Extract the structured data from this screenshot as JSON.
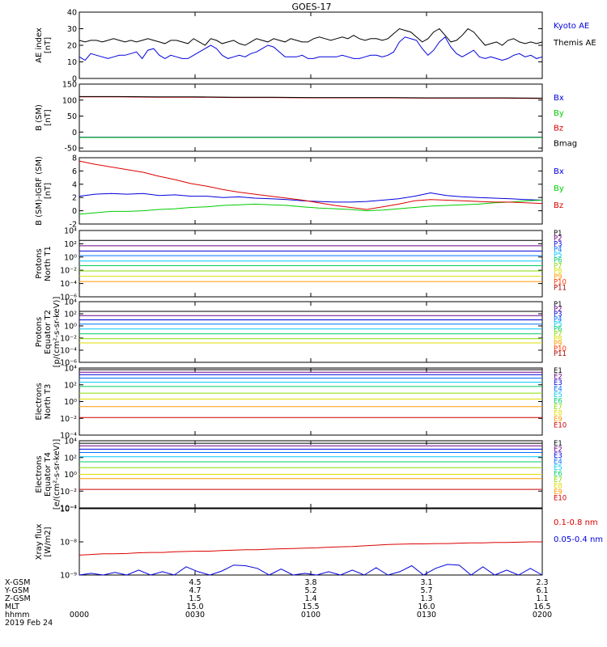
{
  "title": "GOES-17",
  "chart_data": [
    {
      "type": "line",
      "ylabel": [
        "AE index",
        "[nT]"
      ],
      "ylim": [
        0,
        40
      ],
      "yticks": [
        {
          "v": 0,
          "t": "0"
        },
        {
          "v": 10,
          "t": "10"
        },
        {
          "v": 20,
          "t": "20"
        },
        {
          "v": 30,
          "t": "30"
        },
        {
          "v": 40,
          "t": "40"
        }
      ],
      "series": [
        {
          "name": "Kyoto AE",
          "color": "#0000dd",
          "values": [
            13,
            11,
            15,
            14,
            13,
            12,
            13,
            14,
            14,
            15,
            16,
            12,
            17,
            18,
            14,
            12,
            14,
            13,
            12,
            12,
            14,
            16,
            18,
            20,
            18,
            14,
            12,
            13,
            14,
            13,
            15,
            16,
            18,
            20,
            19,
            16,
            13,
            13,
            13,
            14,
            12,
            12,
            13,
            13,
            13,
            13,
            14,
            13,
            12,
            12,
            13,
            14,
            14,
            13,
            14,
            16,
            22,
            25,
            24,
            23,
            18,
            14,
            17,
            22,
            25,
            19,
            15,
            13,
            15,
            17,
            13,
            12,
            13,
            12,
            11,
            12,
            14,
            15,
            13,
            14,
            12,
            13
          ]
        },
        {
          "name": "Themis AE",
          "color": "#000000",
          "values": [
            23,
            22,
            23,
            23,
            22,
            23,
            24,
            23,
            22,
            23,
            22,
            23,
            24,
            23,
            22,
            21,
            23,
            23,
            22,
            21,
            24,
            22,
            20,
            24,
            23,
            21,
            22,
            23,
            21,
            20,
            22,
            24,
            23,
            22,
            24,
            23,
            22,
            24,
            23,
            22,
            22,
            24,
            25,
            24,
            23,
            24,
            25,
            24,
            26,
            24,
            23,
            24,
            24,
            23,
            24,
            27,
            30,
            29,
            28,
            25,
            22,
            24,
            28,
            30,
            26,
            22,
            23,
            26,
            30,
            28,
            24,
            20,
            21,
            22,
            20,
            23,
            24,
            22,
            21,
            22,
            21,
            22
          ]
        }
      ]
    },
    {
      "type": "line",
      "ylabel": [
        "B (SM)",
        "[nT]"
      ],
      "ylim": [
        -60,
        150
      ],
      "yticks": [
        {
          "v": -50,
          "t": "-50"
        },
        {
          "v": 0,
          "t": "0"
        },
        {
          "v": 50,
          "t": "50"
        },
        {
          "v": 100,
          "t": "100"
        },
        {
          "v": 150,
          "t": "150"
        }
      ],
      "series": [
        {
          "name": "Bx",
          "color": "#0000dd",
          "values": [
            -16,
            -16,
            -16,
            -16,
            -16,
            -16,
            -16,
            -16,
            -16,
            -16,
            -16,
            -16,
            -16
          ]
        },
        {
          "name": "By",
          "color": "#00cc00",
          "values": [
            -17,
            -17,
            -17,
            -17,
            -17,
            -17,
            -17,
            -17,
            -17,
            -17,
            -17,
            -17,
            -17
          ]
        },
        {
          "name": "Bz",
          "color": "#dd0000",
          "values": [
            110,
            110,
            109,
            109,
            108,
            108,
            107,
            107,
            107,
            106,
            106,
            106,
            105
          ]
        },
        {
          "name": "Bmag",
          "color": "#000000",
          "values": [
            111,
            111,
            110,
            110,
            109,
            109,
            108,
            108,
            108,
            107,
            107,
            107,
            106
          ]
        }
      ]
    },
    {
      "type": "line",
      "ylabel": [
        "B (SM)-IGRF (SM)",
        "[nT]"
      ],
      "ylim": [
        -2,
        8
      ],
      "yticks": [
        {
          "v": -2,
          "t": "-2"
        },
        {
          "v": 0,
          "t": "0"
        },
        {
          "v": 2,
          "t": "2"
        },
        {
          "v": 4,
          "t": "4"
        },
        {
          "v": 6,
          "t": "6"
        },
        {
          "v": 8,
          "t": "8"
        }
      ],
      "series": [
        {
          "name": "Bx",
          "color": "#0000dd",
          "values": [
            2.2,
            2.5,
            2.6,
            2.5,
            2.6,
            2.3,
            2.4,
            2.2,
            2.2,
            2.0,
            2.1,
            1.9,
            1.8,
            1.7,
            1.5,
            1.4,
            1.3,
            1.3,
            1.4,
            1.6,
            1.8,
            2.2,
            2.7,
            2.3,
            2.1,
            2.0,
            1.9,
            1.8,
            1.7,
            1.6
          ]
        },
        {
          "name": "By",
          "color": "#00cc00",
          "values": [
            -0.5,
            -0.3,
            -0.1,
            -0.1,
            0.0,
            0.2,
            0.3,
            0.5,
            0.6,
            0.8,
            0.9,
            1.0,
            0.9,
            0.8,
            0.6,
            0.4,
            0.3,
            0.2,
            0.0,
            0.1,
            0.3,
            0.5,
            0.7,
            0.8,
            0.9,
            1.0,
            1.2,
            1.3,
            1.5,
            1.6
          ]
        },
        {
          "name": "Bz",
          "color": "#dd0000",
          "values": [
            7.5,
            7.0,
            6.6,
            6.2,
            5.8,
            5.2,
            4.7,
            4.1,
            3.7,
            3.2,
            2.8,
            2.5,
            2.2,
            1.9,
            1.6,
            1.2,
            0.8,
            0.5,
            0.2,
            0.6,
            1.0,
            1.5,
            1.7,
            1.6,
            1.5,
            1.4,
            1.3,
            1.3,
            1.2,
            1.1
          ]
        }
      ]
    },
    {
      "type": "line",
      "yscale": "log",
      "ylabel": [
        "Protons",
        "North T1"
      ],
      "ylim": [
        -6,
        4
      ],
      "yticks": [
        {
          "v": -6,
          "t": "10⁻⁶"
        },
        {
          "v": -4,
          "t": "10⁻⁴"
        },
        {
          "v": -2,
          "t": "10⁻²"
        },
        {
          "v": 0,
          "t": "10⁰"
        },
        {
          "v": 2,
          "t": "10²"
        },
        {
          "v": 4,
          "t": "10⁴"
        }
      ],
      "series": [
        {
          "name": "P1",
          "color": "#000000",
          "level": 2.5
        },
        {
          "name": "P2",
          "color": "#6a0088",
          "level": 1.7
        },
        {
          "name": "P3",
          "color": "#0000dd",
          "level": 0.9
        },
        {
          "name": "P4",
          "color": "#0070ff",
          "level": 0.2
        },
        {
          "name": "P5",
          "color": "#00c8ff",
          "level": -0.6
        },
        {
          "name": "P6",
          "color": "#00cc66",
          "level": -1.3
        },
        {
          "name": "P7",
          "color": "#88dd00",
          "level": -2.1
        },
        {
          "name": "P8",
          "color": "#dddd00",
          "level": -2.9
        },
        {
          "name": "P9",
          "color": "#ff9900",
          "level": -3.7
        },
        {
          "name": "P10",
          "color": "#ff3300",
          "level": null
        },
        {
          "name": "P11",
          "color": "#aa0000",
          "level": null
        }
      ]
    },
    {
      "type": "line",
      "yscale": "log",
      "ylabel": [
        "Protons",
        "Equator T2",
        "[p/(cm²-s-sr-keV)]"
      ],
      "ylim": [
        -6,
        4
      ],
      "yticks": [
        {
          "v": -6,
          "t": "10⁻⁶"
        },
        {
          "v": -4,
          "t": "10⁻⁴"
        },
        {
          "v": -2,
          "t": "10⁻²"
        },
        {
          "v": 0,
          "t": "10⁰"
        },
        {
          "v": 2,
          "t": "10²"
        },
        {
          "v": 4,
          "t": "10⁴"
        }
      ],
      "series": [
        {
          "name": "P1",
          "color": "#000000",
          "level": 2.4
        },
        {
          "name": "P2",
          "color": "#6a0088",
          "level": 1.7
        },
        {
          "name": "P3",
          "color": "#0000dd",
          "level": 1.0
        },
        {
          "name": "P4",
          "color": "#0070ff",
          "level": 0.3
        },
        {
          "name": "P5",
          "color": "#00c8ff",
          "level": -0.5
        },
        {
          "name": "P6",
          "color": "#00cc66",
          "level": -1.3
        },
        {
          "name": "P7",
          "color": "#88dd00",
          "level": -2.1
        },
        {
          "name": "P8",
          "color": "#dddd00",
          "level": -2.8
        },
        {
          "name": "P9",
          "color": "#ff9900",
          "level": null
        },
        {
          "name": "P10",
          "color": "#ff3300",
          "level": null
        },
        {
          "name": "P11",
          "color": "#aa0000",
          "level": null
        }
      ]
    },
    {
      "type": "line",
      "yscale": "log",
      "ylabel": [
        "Electrons",
        "North T3"
      ],
      "ylim": [
        -4,
        4
      ],
      "yticks": [
        {
          "v": -4,
          "t": "10⁻⁴"
        },
        {
          "v": -2,
          "t": "10⁻²"
        },
        {
          "v": 0,
          "t": "10⁰"
        },
        {
          "v": 2,
          "t": "10²"
        },
        {
          "v": 4,
          "t": "10⁴"
        }
      ],
      "series": [
        {
          "name": "E1",
          "color": "#000000",
          "level": 3.8
        },
        {
          "name": "E2",
          "color": "#6a0088",
          "level": 3.5
        },
        {
          "name": "E3",
          "color": "#0000dd",
          "level": 3.2
        },
        {
          "name": "E4",
          "color": "#0070ff",
          "level": 2.8
        },
        {
          "name": "E5",
          "color": "#00c8ff",
          "level": 2.3
        },
        {
          "name": "E6",
          "color": "#00cc66",
          "level": 1.8
        },
        {
          "name": "E7",
          "color": "#88dd00",
          "level": 1.0
        },
        {
          "name": "E8",
          "color": "#dddd00",
          "level": 0.3
        },
        {
          "name": "E9",
          "color": "#ff9900",
          "level": -0.6
        },
        {
          "name": "E10",
          "color": "#cc0000",
          "level": -1.9
        }
      ]
    },
    {
      "type": "line",
      "yscale": "log",
      "ylabel": [
        "Electrons",
        "Equator T4",
        "[e/(cm²-s-sr-keV)]"
      ],
      "ylim": [
        -4,
        4
      ],
      "yticks": [
        {
          "v": -4,
          "t": "10⁻⁴"
        },
        {
          "v": -2,
          "t": "10⁻²"
        },
        {
          "v": 0,
          "t": "10⁰"
        },
        {
          "v": 2,
          "t": "10²"
        },
        {
          "v": 4,
          "t": "10⁴"
        }
      ],
      "series": [
        {
          "name": "E1",
          "color": "#000000",
          "level": 3.7
        },
        {
          "name": "E2",
          "color": "#6a0088",
          "level": 3.4
        },
        {
          "name": "E3",
          "color": "#0000dd",
          "level": 3.0
        },
        {
          "name": "E4",
          "color": "#0070ff",
          "level": 2.6
        },
        {
          "name": "E5",
          "color": "#00c8ff",
          "level": 2.1
        },
        {
          "name": "E6",
          "color": "#00cc66",
          "level": 1.5
        },
        {
          "name": "E7",
          "color": "#88dd00",
          "level": 0.8
        },
        {
          "name": "E8",
          "color": "#dddd00",
          "level": 0.0
        },
        {
          "name": "E9",
          "color": "#ff9900",
          "level": -0.5
        },
        {
          "name": "E10",
          "color": "#cc0000",
          "level": -1.8
        }
      ]
    },
    {
      "type": "line",
      "yscale": "log",
      "ylabel": [
        "Xray flux",
        "[W/m2]"
      ],
      "ylim": [
        -9,
        -7
      ],
      "yticks": [
        {
          "v": -9,
          "t": "10⁻⁹"
        },
        {
          "v": -8,
          "t": "10⁻⁸"
        },
        {
          "v": -7,
          "t": "10⁻⁷"
        }
      ],
      "series": [
        {
          "name": "0.1-0.8 nm",
          "color": "#dd0000",
          "values": [
            -8.4,
            -8.38,
            -8.36,
            -8.36,
            -8.35,
            -8.33,
            -8.32,
            -8.32,
            -8.3,
            -8.29,
            -8.28,
            -8.28,
            -8.26,
            -8.25,
            -8.24,
            -8.24,
            -8.22,
            -8.21,
            -8.2,
            -8.19,
            -8.18,
            -8.16,
            -8.15,
            -8.14,
            -8.12,
            -8.1,
            -8.08,
            -8.07,
            -8.06,
            -8.06,
            -8.05,
            -8.05,
            -8.04,
            -8.03,
            -8.03,
            -8.02,
            -8.02,
            -8.01,
            -8.0,
            -8.0
          ]
        },
        {
          "name": "0.05-0.4 nm",
          "color": "#0000dd",
          "values": [
            -9.0,
            -8.95,
            -9.0,
            -8.92,
            -9.0,
            -8.85,
            -9.0,
            -8.9,
            -9.0,
            -8.75,
            -8.9,
            -9.0,
            -8.88,
            -8.7,
            -8.72,
            -8.8,
            -9.0,
            -8.82,
            -9.0,
            -8.95,
            -9.0,
            -8.9,
            -9.0,
            -8.85,
            -9.0,
            -8.78,
            -9.0,
            -8.9,
            -8.72,
            -9.0,
            -8.8,
            -8.68,
            -8.7,
            -9.0,
            -8.75,
            -9.0,
            -8.85,
            -9.0,
            -8.8,
            -9.0
          ]
        }
      ]
    }
  ],
  "xaxis": {
    "row_labels": [
      "X-GSM",
      "Y-GSM",
      "Z-GSM",
      "MLT",
      "hhmm",
      "2019 Feb 24"
    ],
    "ticks": [
      {
        "hhmm": "0000",
        "x_gsm": "",
        "y_gsm": "",
        "z_gsm": "",
        "mlt": ""
      },
      {
        "hhmm": "0030",
        "x_gsm": "4.5",
        "y_gsm": "4.7",
        "z_gsm": "1.5",
        "mlt": "15.0"
      },
      {
        "hhmm": "0100",
        "x_gsm": "3.8",
        "y_gsm": "5.2",
        "z_gsm": "1.4",
        "mlt": "15.5"
      },
      {
        "hhmm": "0130",
        "x_gsm": "3.1",
        "y_gsm": "5.7",
        "z_gsm": "1.3",
        "mlt": "16.0"
      },
      {
        "hhmm": "0200",
        "x_gsm": "2.3",
        "y_gsm": "6.1",
        "z_gsm": "1.1",
        "mlt": "16.5"
      }
    ]
  }
}
